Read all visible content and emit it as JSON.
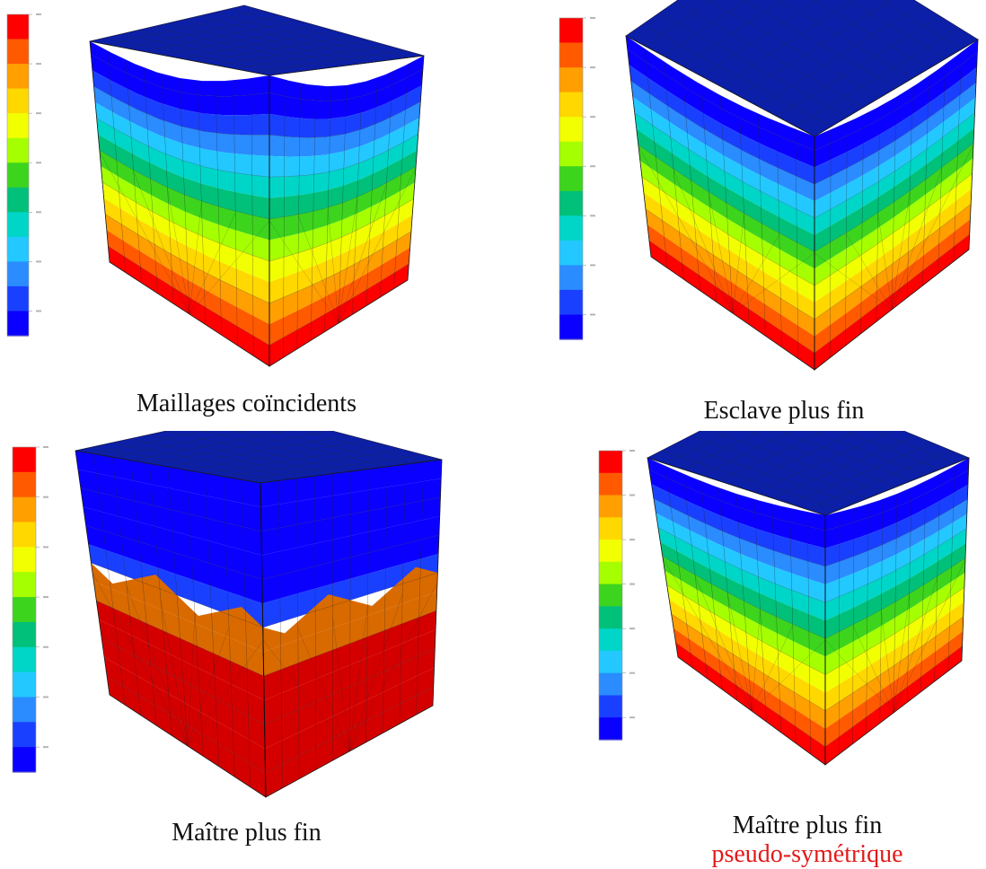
{
  "figures": [
    {
      "caption": "Maillages coïncidents"
    },
    {
      "caption": "Esclave plus fin"
    },
    {
      "caption": "Maître plus fin"
    },
    {
      "caption": "Maître plus fin",
      "caption_sub": "pseudo-symétrique"
    }
  ],
  "colors": {
    "top_face": "#0b1fa8",
    "caption_highlight": "#e31a1a",
    "colormap": [
      "#ff0000",
      "#ff5a00",
      "#ff9f00",
      "#ffd800",
      "#f2ff00",
      "#a6ff00",
      "#3dd41e",
      "#00c07a",
      "#00d6c8",
      "#22c8ff",
      "#2a8cff",
      "#1a40ff",
      "#0a00ff"
    ]
  }
}
